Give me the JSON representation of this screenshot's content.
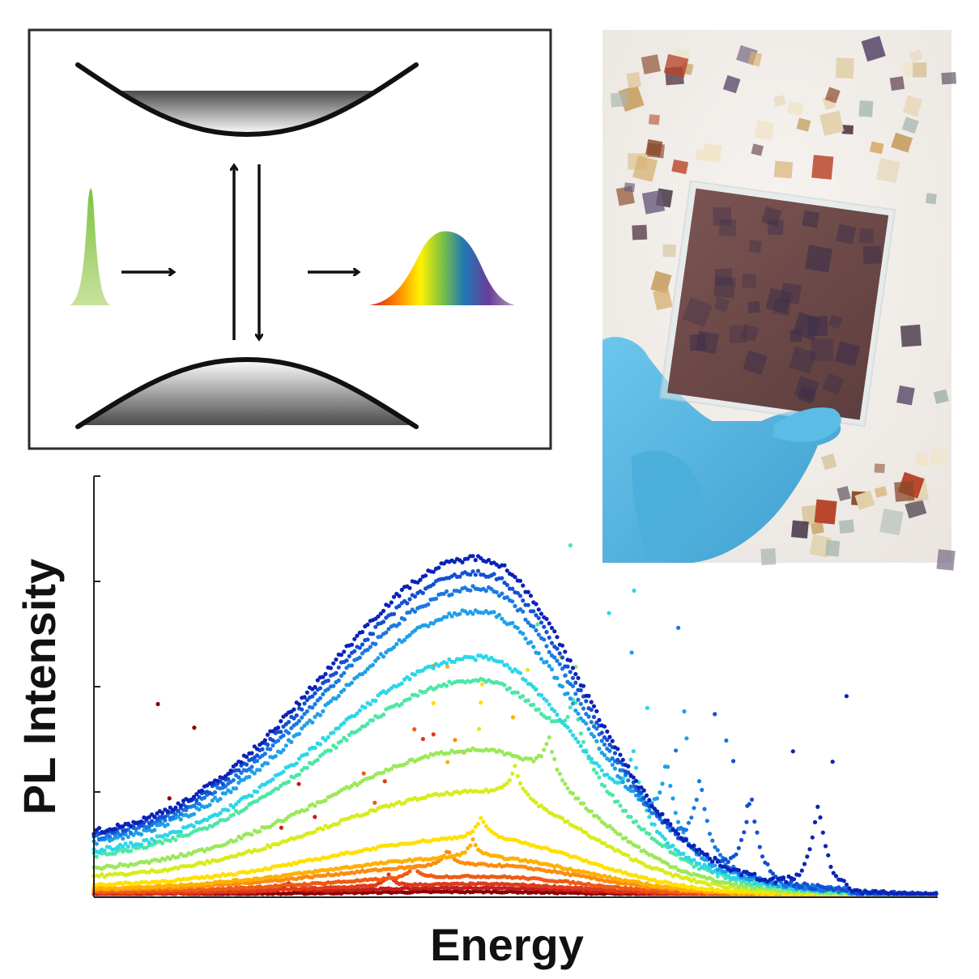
{
  "chart_data": {
    "type": "scatter",
    "xlabel": "Energy",
    "ylabel": "PL Intensity",
    "x_ticks_visible": false,
    "y_ticks_visible": true,
    "y_tick_count": 4,
    "grid": false,
    "legend": "none",
    "note": "Photoluminescence spectra; curve amplitude increases from red to blue; each curve has a sharp emission peak.",
    "series": [
      {
        "name": "",
        "color": "#8b0000",
        "amplitude": 0.01,
        "peak_x": 0.09
      },
      {
        "name": "",
        "color": "#c41e1e",
        "amplitude": 0.02,
        "peak_x": 0.23
      },
      {
        "name": "",
        "color": "#e03a1a",
        "amplitude": 0.03,
        "peak_x": 0.35
      },
      {
        "name": "",
        "color": "#f05a14",
        "amplitude": 0.05,
        "peak_x": 0.38
      },
      {
        "name": "",
        "color": "#fb8c10",
        "amplitude": 0.08,
        "peak_x": 0.42
      },
      {
        "name": "",
        "color": "#ffb000",
        "amplitude": 0.1,
        "peak_x": 0.45
      },
      {
        "name": "",
        "color": "#ffe000",
        "amplitude": 0.15,
        "peak_x": 0.46
      },
      {
        "name": "",
        "color": "#d8ec1c",
        "amplitude": 0.27,
        "peak_x": 0.5
      },
      {
        "name": "",
        "color": "#9be85a",
        "amplitude": 0.38,
        "peak_x": 0.54
      },
      {
        "name": "",
        "color": "#4ee6a8",
        "amplitude": 0.56,
        "peak_x": 0.57
      },
      {
        "name": "",
        "color": "#2cd6e8",
        "amplitude": 0.62,
        "peak_x": 0.64
      },
      {
        "name": "",
        "color": "#1fa0e8",
        "amplitude": 0.74,
        "peak_x": 0.68
      },
      {
        "name": "",
        "color": "#1a78e0",
        "amplitude": 0.8,
        "peak_x": 0.72
      },
      {
        "name": "",
        "color": "#1450d0",
        "amplitude": 0.84,
        "peak_x": 0.78
      },
      {
        "name": "",
        "color": "#0a22b8",
        "amplitude": 0.88,
        "peak_x": 0.86
      }
    ]
  },
  "diagram": {
    "band_colors": {
      "top": "#555555",
      "bottom": "#555555",
      "line": "#111111"
    },
    "input_spectrum_color": "#7dc243",
    "output_spectrum_colors": [
      "#d7191c",
      "#ff8c00",
      "#fff200",
      "#7dc243",
      "#1f78b4",
      "#6a3d9a",
      "#888888"
    ]
  },
  "photo": {
    "description_icon": "perovskite-film-photo",
    "glove_color": "#56b8e0",
    "film_color": "#6e4a48"
  }
}
